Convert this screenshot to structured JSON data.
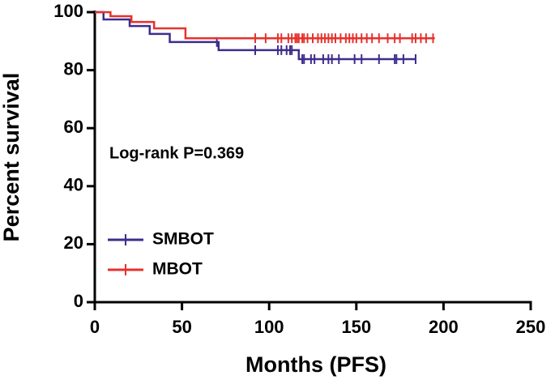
{
  "chart_data": {
    "type": "km",
    "x_label": "Months (PFS)",
    "y_label": "Percent survival",
    "annotation": "Log-rank P=0.369",
    "legend": "lower left",
    "xlim": [
      0,
      250
    ],
    "xticks": [
      0,
      50,
      100,
      150,
      200,
      250
    ],
    "ylim": [
      0,
      100
    ],
    "yticks": [
      0,
      20,
      40,
      60,
      80,
      100
    ],
    "series": [
      {
        "name": "SMBOT",
        "color": "#3f2c8c",
        "x": [
          0,
          5,
          20,
          31.5,
          43,
          71,
          117,
          184
        ],
        "values": [
          100,
          97.5,
          95.2,
          92.5,
          89.7,
          86.9,
          83.8,
          83.8
        ],
        "censor_x": [
          70,
          92,
          105,
          107,
          110,
          112,
          113,
          119,
          120,
          124,
          126,
          131,
          134,
          136,
          140,
          149,
          153,
          163,
          172,
          173,
          177,
          184
        ],
        "censor_values": [
          89.7,
          86.9,
          86.9,
          86.9,
          86.9,
          86.9,
          86.9,
          83.8,
          83.8,
          83.8,
          83.8,
          83.8,
          83.8,
          83.8,
          83.8,
          83.8,
          83.8,
          83.8,
          83.8,
          83.8,
          83.8,
          83.8
        ]
      },
      {
        "name": "MBOT",
        "color": "#e5322d",
        "x": [
          0,
          9,
          21,
          34,
          52,
          195
        ],
        "values": [
          100,
          98.6,
          96.6,
          94.4,
          91,
          91
        ],
        "censor_x": [
          92,
          98,
          105,
          107,
          111,
          113,
          115,
          116,
          117,
          119,
          120,
          122,
          125,
          128,
          130,
          132,
          134,
          136,
          138,
          141,
          144,
          146,
          148,
          150,
          153,
          156,
          159,
          163,
          168,
          172,
          175,
          182,
          184,
          187,
          190,
          194
        ],
        "censor_values": [
          91,
          91,
          91,
          91,
          91,
          91,
          91,
          91,
          91,
          91,
          91,
          91,
          91,
          91,
          91,
          91,
          91,
          91,
          91,
          91,
          91,
          91,
          91,
          91,
          91,
          91,
          91,
          91,
          91,
          91,
          91,
          91,
          91,
          91,
          91,
          91
        ]
      }
    ]
  }
}
